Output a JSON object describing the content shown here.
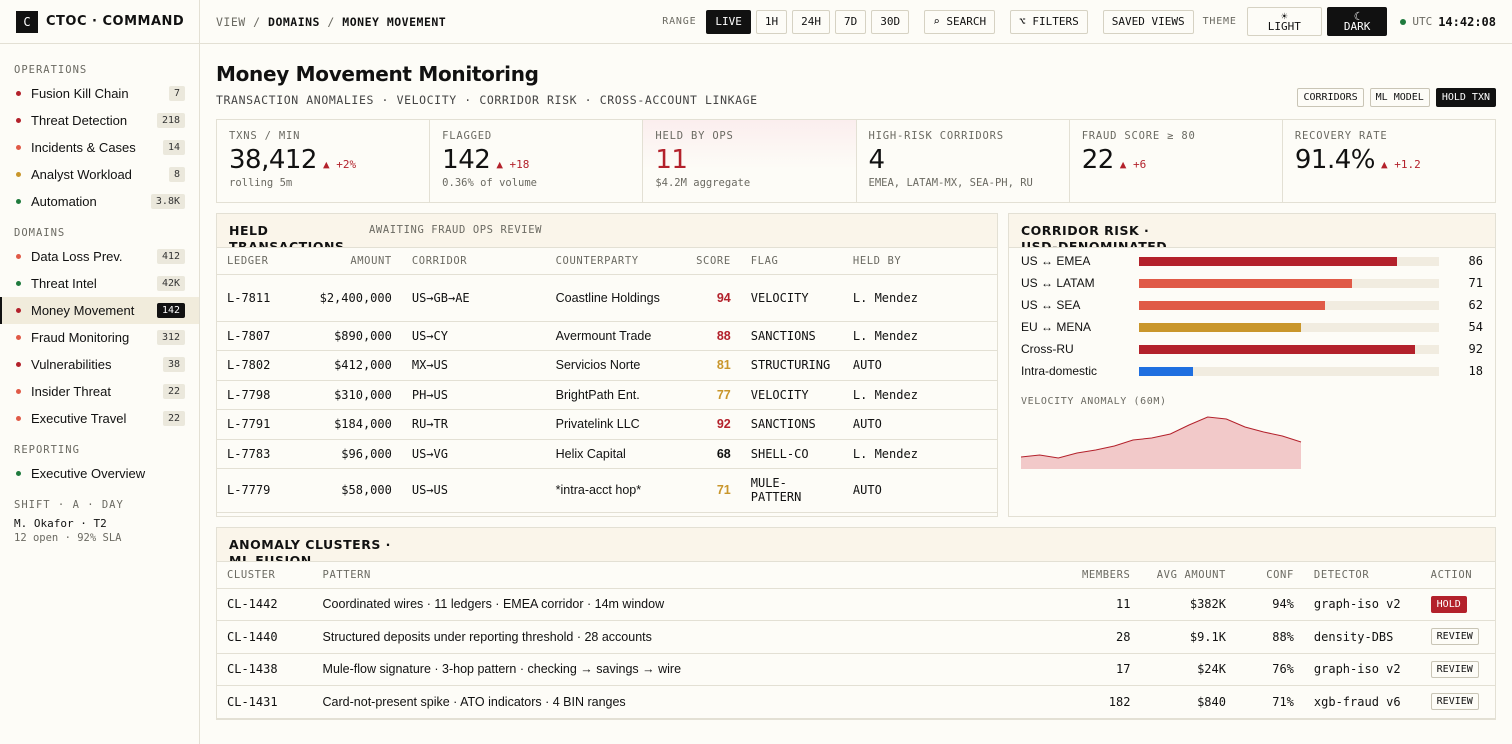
{
  "brand": {
    "logo": "C",
    "name": "CTOC · COMMAND"
  },
  "sidebar": {
    "sections": [
      {
        "label": "OPERATIONS",
        "items": [
          {
            "label": "Fusion Kill Chain",
            "count": "7",
            "dot": "#b3212b"
          },
          {
            "label": "Threat Detection",
            "count": "218",
            "dot": "#b3212b"
          },
          {
            "label": "Incidents & Cases",
            "count": "14",
            "dot": "#e05a47"
          },
          {
            "label": "Analyst Workload",
            "count": "8",
            "dot": "#c9962b"
          },
          {
            "label": "Automation",
            "count": "3.8K",
            "dot": "#1f7a3d"
          }
        ]
      },
      {
        "label": "DOMAINS",
        "items": [
          {
            "label": "Data Loss Prev.",
            "count": "412",
            "dot": "#e05a47"
          },
          {
            "label": "Threat Intel",
            "count": "42K",
            "dot": "#1f7a3d"
          },
          {
            "label": "Money Movement",
            "count": "142",
            "dot": "#b3212b",
            "active": true
          },
          {
            "label": "Fraud Monitoring",
            "count": "312",
            "dot": "#e05a47"
          },
          {
            "label": "Vulnerabilities",
            "count": "38",
            "dot": "#b3212b"
          },
          {
            "label": "Insider Threat",
            "count": "22",
            "dot": "#e05a47"
          },
          {
            "label": "Executive Travel",
            "count": "22",
            "dot": "#e05a47"
          }
        ]
      },
      {
        "label": "REPORTING",
        "items": [
          {
            "label": "Executive Overview",
            "count": "",
            "dot": "#1f7a3d"
          }
        ]
      }
    ],
    "shift": {
      "title": "SHIFT · A · DAY",
      "analyst": "M. Okafor · T2",
      "stats": "12 open · 92% SLA"
    }
  },
  "topbar": {
    "crumb_view": "VIEW",
    "crumb_sep": "/",
    "crumb_domains": "DOMAINS",
    "crumb_page": "MONEY MOVEMENT",
    "range_label": "RANGE",
    "ranges": [
      "LIVE",
      "1H",
      "24H",
      "7D",
      "30D"
    ],
    "active_range": "LIVE",
    "search": "⌕ SEARCH",
    "filters": "⌥ FILTERS",
    "saved_views": "SAVED VIEWS",
    "theme_label": "THEME",
    "theme_light": "LIGHT",
    "theme_dark": "DARK",
    "theme_light_icon": "☀",
    "theme_dark_icon": "☾",
    "utc_label": "UTC",
    "time": "14:42:08"
  },
  "page": {
    "title": "Money Movement Monitoring",
    "subtitle": "TRANSACTION ANOMALIES · VELOCITY · CORRIDOR RISK · CROSS-ACCOUNT LINKAGE",
    "actions": [
      "CORRIDORS",
      "ML MODEL",
      "HOLD TXN"
    ]
  },
  "kpis": [
    {
      "label": "TXNS / MIN",
      "value": "38,412",
      "delta": "▲ +2%",
      "sub": "rolling 5m"
    },
    {
      "label": "FLAGGED",
      "value": "142",
      "delta": "▲ +18",
      "sub": "0.36% of volume"
    },
    {
      "label": "HELD BY OPS",
      "value": "11",
      "delta": "",
      "sub": "$4.2M aggregate",
      "red": true
    },
    {
      "label": "HIGH-RISK CORRIDORS",
      "value": "4",
      "delta": "",
      "sub": "EMEA, LATAM-MX, SEA-PH, RU"
    },
    {
      "label": "FRAUD SCORE ≥ 80",
      "value": "22",
      "delta": "▲ +6",
      "sub": ""
    },
    {
      "label": "RECOVERY RATE",
      "value": "91.4%",
      "delta": "▲ +1.2",
      "sub": ""
    }
  ],
  "held": {
    "title": "HELD TRANSACTIONS",
    "subtitle": "AWAITING FRAUD OPS REVIEW",
    "columns": [
      "LEDGER",
      "AMOUNT",
      "CORRIDOR",
      "COUNTERPARTY",
      "SCORE",
      "FLAG",
      "HELD BY"
    ],
    "rows": [
      {
        "ledger": "L-7811",
        "amount": "$2,400,000",
        "corridor": "US→GB→AE",
        "counterparty": "Coastline Holdings",
        "score": "94",
        "level": "red",
        "flag": "VELOCITY",
        "held_by": "L. Mendez"
      },
      {
        "ledger": "L-7807",
        "amount": "$890,000",
        "corridor": "US→CY",
        "counterparty": "Avermount Trade",
        "score": "88",
        "level": "red",
        "flag": "SANCTIONS",
        "held_by": "L. Mendez"
      },
      {
        "ledger": "L-7802",
        "amount": "$412,000",
        "corridor": "MX→US",
        "counterparty": "Servicios Norte",
        "score": "81",
        "level": "amber",
        "flag": "STRUCTURING",
        "held_by": "AUTO"
      },
      {
        "ledger": "L-7798",
        "amount": "$310,000",
        "corridor": "PH→US",
        "counterparty": "BrightPath Ent.",
        "score": "77",
        "level": "amber",
        "flag": "VELOCITY",
        "held_by": "L. Mendez"
      },
      {
        "ledger": "L-7791",
        "amount": "$184,000",
        "corridor": "RU→TR",
        "counterparty": "Privatelink LLC",
        "score": "92",
        "level": "red",
        "flag": "SANCTIONS",
        "held_by": "AUTO"
      },
      {
        "ledger": "L-7783",
        "amount": "$96,000",
        "corridor": "US→VG",
        "counterparty": "Helix Capital",
        "score": "68",
        "level": "black",
        "flag": "SHELL-CO",
        "held_by": "L. Mendez"
      },
      {
        "ledger": "L-7779",
        "amount": "$58,000",
        "corridor": "US→US",
        "counterparty": "*intra-acct hop*",
        "score": "71",
        "level": "amber",
        "flag": "MULE-PATTERN",
        "held_by": "AUTO"
      }
    ]
  },
  "corridor": {
    "title": "CORRIDOR RISK · USD-DENOMINATED",
    "rows": [
      {
        "name": "US ↔ EMEA",
        "value": 86,
        "color": "#b3212b"
      },
      {
        "name": "US ↔ LATAM",
        "value": 71,
        "color": "#e05a47"
      },
      {
        "name": "US ↔ SEA",
        "value": 62,
        "color": "#e05a47"
      },
      {
        "name": "EU ↔ MENA",
        "value": 54,
        "color": "#c9962b"
      },
      {
        "name": "Cross-RU",
        "value": 92,
        "color": "#b3212b"
      },
      {
        "name": "Intra-domestic",
        "value": 18,
        "color": "#1f6fe0"
      }
    ],
    "velocity_label": "VELOCITY ANOMALY (60M)",
    "velocity": [
      12,
      14,
      11,
      16,
      19,
      23,
      29,
      31,
      35,
      44,
      52,
      50,
      42,
      37,
      33,
      27
    ]
  },
  "clusters": {
    "title": "ANOMALY CLUSTERS · ML FUSION",
    "columns": [
      "CLUSTER",
      "PATTERN",
      "MEMBERS",
      "AVG AMOUNT",
      "CONF",
      "DETECTOR",
      "ACTION"
    ],
    "rows": [
      {
        "id": "CL-1442",
        "pattern": "Coordinated wires · 11 ledgers · EMEA corridor · 14m window",
        "members": "11",
        "avg": "$382K",
        "conf": "94%",
        "detector": "graph-iso v2",
        "action": "HOLD"
      },
      {
        "id": "CL-1440",
        "pattern": "Structured deposits under reporting threshold · 28 accounts",
        "members": "28",
        "avg": "$9.1K",
        "conf": "88%",
        "detector": "density-DBS",
        "action": "REVIEW"
      },
      {
        "id": "CL-1438",
        "pattern": "Mule-flow signature · 3-hop pattern · checking → savings → wire",
        "members": "17",
        "avg": "$24K",
        "conf": "76%",
        "detector": "graph-iso v2",
        "action": "REVIEW"
      },
      {
        "id": "CL-1431",
        "pattern": "Card-not-present spike · ATO indicators · 4 BIN ranges",
        "members": "182",
        "avg": "$840",
        "conf": "71%",
        "detector": "xgb-fraud v6",
        "action": "REVIEW"
      }
    ]
  }
}
